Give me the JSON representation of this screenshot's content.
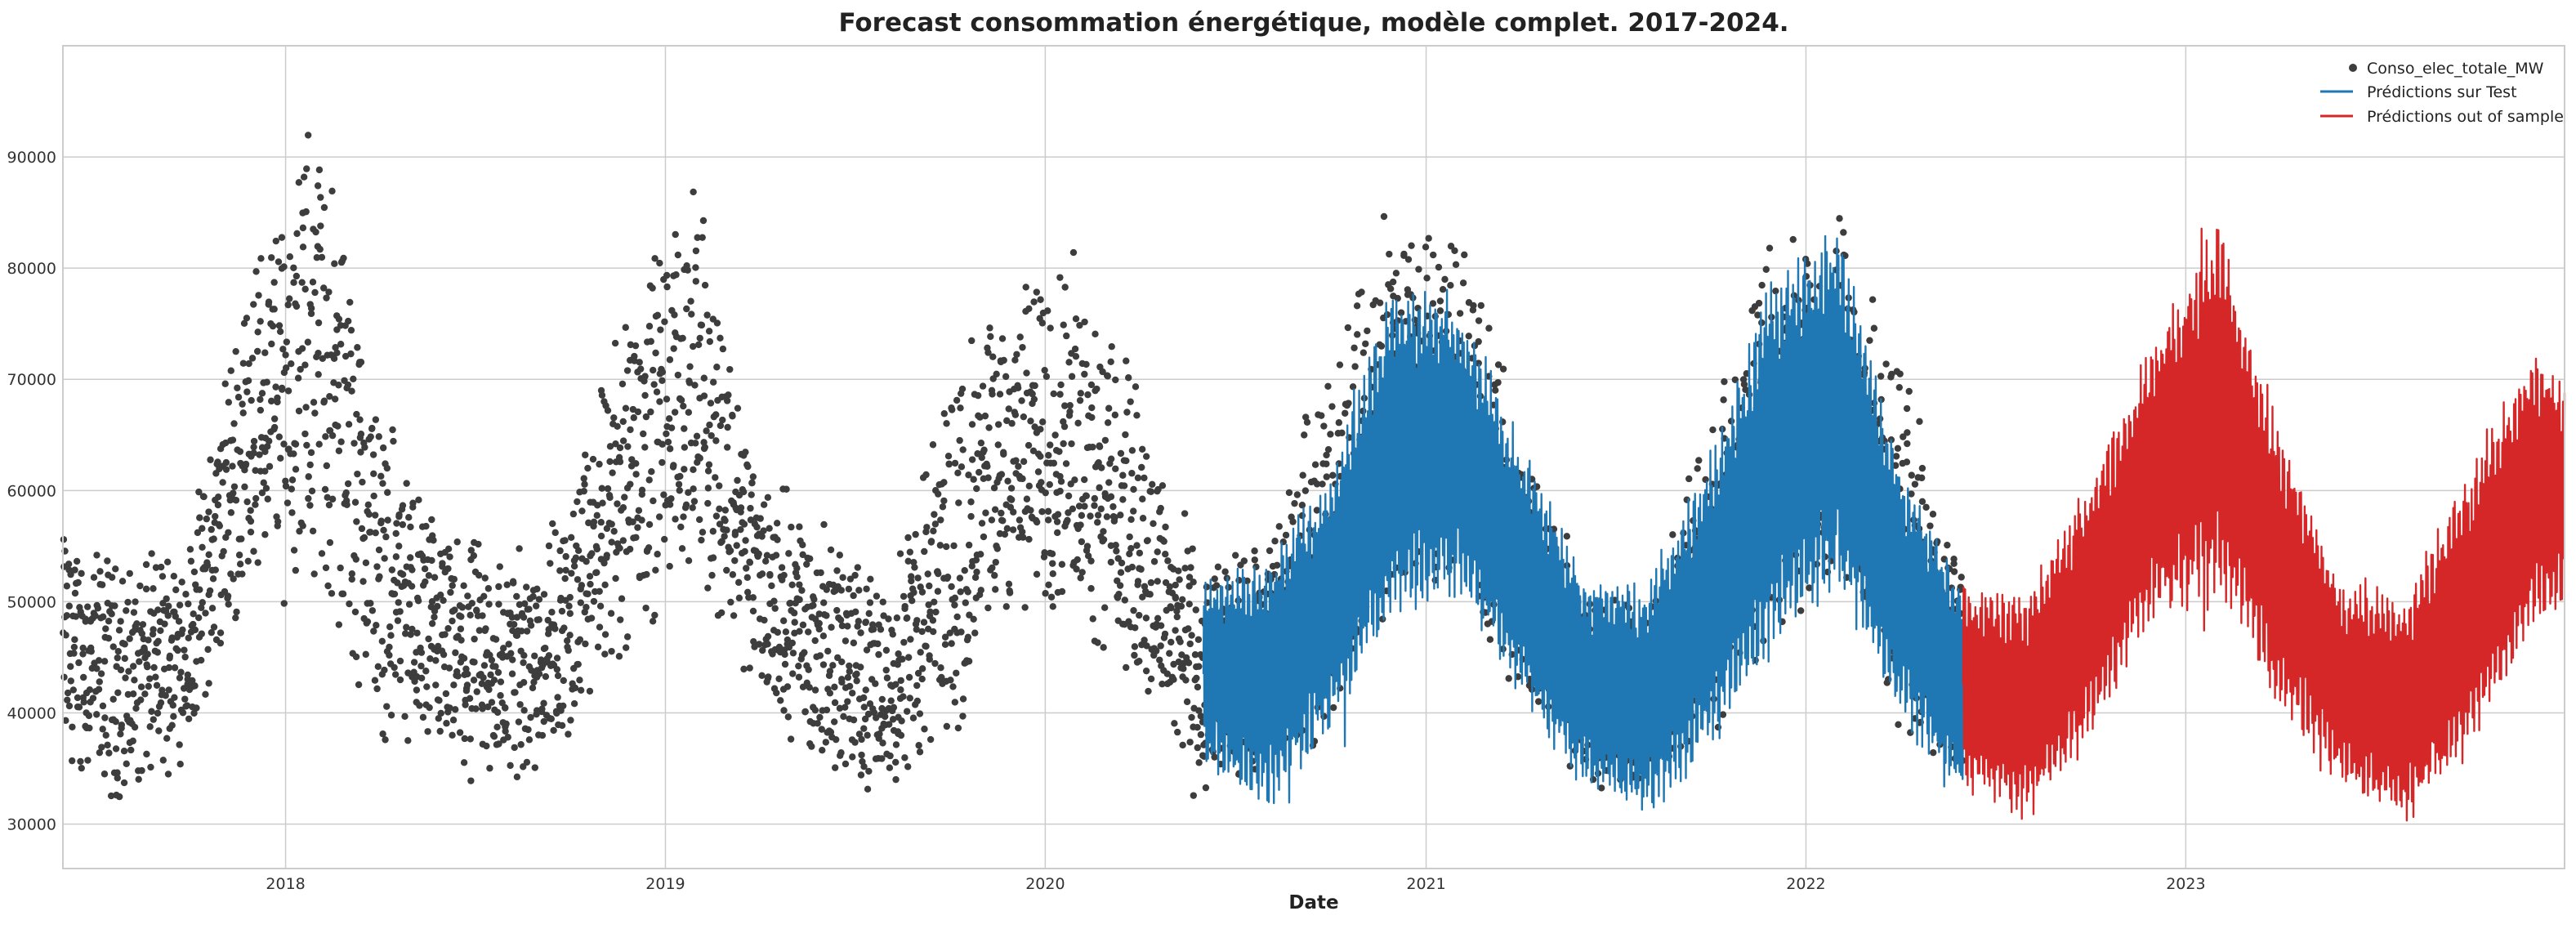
{
  "chart_data": {
    "type": "line",
    "title": "Forecast consommation énergétique, modèle complet. 2017-2024.",
    "xlabel": "Date",
    "ylabel": "",
    "xlim": [
      "2017-06-01",
      "2023-12-31"
    ],
    "ylim": [
      26000,
      100000
    ],
    "x_ticks": [
      "2018",
      "2019",
      "2020",
      "2021",
      "2022",
      "2023"
    ],
    "y_ticks": [
      30000,
      40000,
      50000,
      60000,
      70000,
      80000,
      90000
    ],
    "grid": true,
    "legend_position": "top-right",
    "colors": {
      "observed": "#3d3d3d",
      "test": "#1f77b4",
      "out_of_sample": "#d62728",
      "grid": "#cccccc"
    },
    "series": [
      {
        "name": "Conso_elec_totale_MW",
        "kind": "scatter",
        "x": [
          "2017-06-01",
          "2017-08-01",
          "2017-10-01",
          "2017-12-01",
          "2018-02-01",
          "2018-04-01",
          "2018-06-01",
          "2018-08-01",
          "2018-10-01",
          "2018-12-01",
          "2019-02-01",
          "2019-04-01",
          "2019-06-01",
          "2019-08-01",
          "2019-10-01",
          "2019-12-01",
          "2020-02-01",
          "2020-04-01",
          "2020-06-01",
          "2020-08-01",
          "2020-10-01",
          "2020-12-01",
          "2021-02-01",
          "2021-04-01",
          "2021-06-01",
          "2021-08-01",
          "2021-10-01",
          "2021-12-01",
          "2022-02-01",
          "2022-04-01",
          "2022-06-01"
        ],
        "low": [
          34000,
          31000,
          36000,
          50000,
          49000,
          37000,
          33000,
          31000,
          36000,
          45000,
          52000,
          40000,
          34000,
          32000,
          34000,
          47000,
          48000,
          40000,
          30000,
          33000,
          38000,
          49000,
          50000,
          39000,
          33000,
          31000,
          37000,
          45000,
          50000,
          38000,
          32000
        ],
        "high": [
          58000,
          54000,
          57000,
          83000,
          96000,
          70000,
          57000,
          56000,
          60000,
          82000,
          88000,
          63000,
          58000,
          52000,
          73000,
          80000,
          83000,
          70000,
          54000,
          57000,
          74000,
          88000,
          86000,
          67000,
          54000,
          50000,
          67000,
          85000,
          86000,
          73000,
          54000
        ]
      },
      {
        "name": "Prédictions sur Test",
        "kind": "band",
        "x": [
          "2020-06-01",
          "2020-08-01",
          "2020-10-01",
          "2020-12-01",
          "2021-02-01",
          "2021-04-01",
          "2021-06-01",
          "2021-08-01",
          "2021-10-01",
          "2021-12-01",
          "2022-02-01",
          "2022-04-01",
          "2022-06-01"
        ],
        "low": [
          35000,
          31000,
          38000,
          48000,
          50000,
          41000,
          33000,
          30000,
          36000,
          45000,
          51000,
          39000,
          32000
        ],
        "high": [
          52000,
          54000,
          62000,
          79000,
          78000,
          65000,
          53000,
          52000,
          64000,
          80000,
          84000,
          63000,
          52000
        ]
      },
      {
        "name": "Prédictions out of sample",
        "kind": "band",
        "x": [
          "2022-06-01",
          "2022-08-01",
          "2022-10-01",
          "2022-12-01",
          "2023-02-01",
          "2023-04-01",
          "2023-06-01",
          "2023-08-01",
          "2023-10-01",
          "2023-12-01",
          "2023-12-31"
        ],
        "low": [
          33000,
          30000,
          37000,
          48000,
          50000,
          40000,
          33000,
          29500,
          36000,
          47000,
          50000
        ],
        "high": [
          52000,
          51000,
          62000,
          74000,
          85000,
          66000,
          52000,
          51000,
          63000,
          73000,
          70000
        ]
      }
    ]
  }
}
